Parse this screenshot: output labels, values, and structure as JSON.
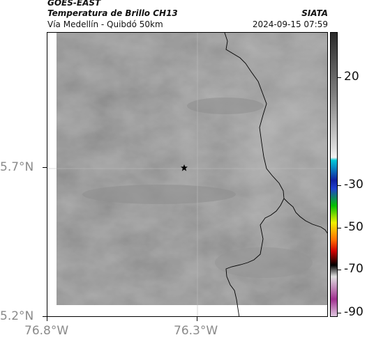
{
  "header": {
    "satellite": "GOES-EAST",
    "product": "Temperatura de Brillo CH13",
    "region": "Vía Medellín - Quibdó 50km",
    "organization": "SIATA",
    "datetime": "2024-09-15 07:59"
  },
  "map": {
    "lat_labels": [
      "5.7°N",
      "5.2°N"
    ],
    "lon_labels": [
      "76.8°W",
      "76.3°W"
    ],
    "marker": "star-icon"
  },
  "colorbar": {
    "tick_labels": [
      "20",
      "-30",
      "-50",
      "-70",
      "-90"
    ],
    "colors": {
      "warm": "#2a2a2a",
      "mid": "#808080",
      "light": "#d8d8d8",
      "cyan": "#00c8d8",
      "blue": "#1020a0",
      "green": "#00c000",
      "yellow": "#f0f000",
      "orange": "#ff7000",
      "red": "#d00000",
      "black": "#000000",
      "magenta": "#a03090"
    }
  }
}
